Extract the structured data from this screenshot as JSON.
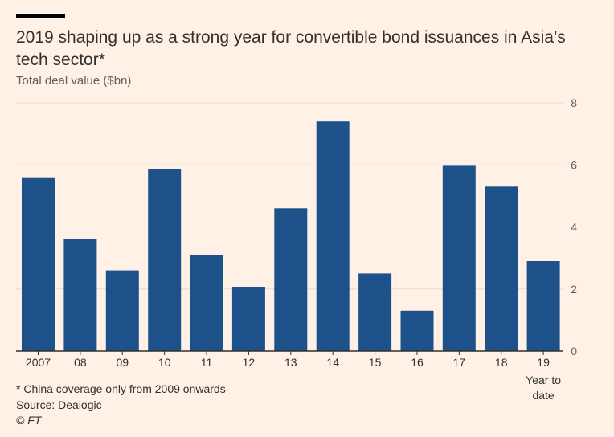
{
  "header": {
    "title": "2019 shaping up as a strong year for convertible bond issuances in Asia’s tech sector*",
    "subtitle": "Total deal value ($bn)"
  },
  "footer": {
    "footnote": "* China coverage only from 2009 onwards",
    "source": "Source: Dealogic",
    "copyright": "© FT"
  },
  "colors": {
    "background": "#fff1e5",
    "bar": "#1d5189",
    "grid": "#e6d9ce",
    "axis": "#33302e",
    "text": "#66605c"
  },
  "chart_data": {
    "type": "bar",
    "title": "2019 shaping up as a strong year for convertible bond issuances in Asia’s tech sector*",
    "ylabel": "Total deal value ($bn)",
    "xlabel": "",
    "categories": [
      "2007",
      "08",
      "09",
      "10",
      "11",
      "12",
      "13",
      "14",
      "15",
      "16",
      "17",
      "18",
      "19"
    ],
    "category_notes": {
      "19": "Year to date"
    },
    "values": [
      5.6,
      3.6,
      2.6,
      5.85,
      3.1,
      2.07,
      4.6,
      7.4,
      2.5,
      1.3,
      5.97,
      5.3,
      2.9
    ],
    "ylim": [
      0,
      8
    ],
    "yticks": [
      0,
      2,
      4,
      6,
      8
    ],
    "grid": true,
    "yaxis_position": "right"
  }
}
